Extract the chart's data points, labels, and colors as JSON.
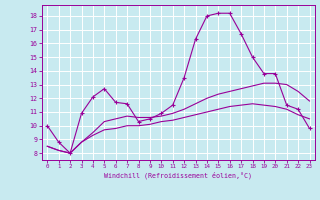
{
  "xlabel": "Windchill (Refroidissement éolien,°C)",
  "bg_color": "#c8eaf0",
  "line_color": "#990099",
  "grid_color": "#ffffff",
  "xlim": [
    -0.5,
    23.5
  ],
  "ylim": [
    7.5,
    18.8
  ],
  "xticks": [
    0,
    1,
    2,
    3,
    4,
    5,
    6,
    7,
    8,
    9,
    10,
    11,
    12,
    13,
    14,
    15,
    16,
    17,
    18,
    19,
    20,
    21,
    22,
    23
  ],
  "yticks": [
    8,
    9,
    10,
    11,
    12,
    13,
    14,
    15,
    16,
    17,
    18
  ],
  "series1_x": [
    0,
    1,
    2,
    3,
    4,
    5,
    6,
    7,
    8,
    9,
    10,
    11,
    12,
    13,
    14,
    15,
    16,
    17,
    18,
    19,
    20,
    21,
    22,
    23
  ],
  "series1_y": [
    10.0,
    8.8,
    8.0,
    10.9,
    12.1,
    12.7,
    11.7,
    11.6,
    10.3,
    10.5,
    10.9,
    11.5,
    13.5,
    16.3,
    18.0,
    18.2,
    18.2,
    16.7,
    15.0,
    13.8,
    13.8,
    11.5,
    11.2,
    9.8
  ],
  "series2_x": [
    0,
    1,
    2,
    3,
    4,
    5,
    6,
    7,
    8,
    9,
    10,
    11,
    12,
    13,
    14,
    15,
    16,
    17,
    18,
    19,
    20,
    21,
    22,
    23
  ],
  "series2_y": [
    8.5,
    8.2,
    8.0,
    8.8,
    9.3,
    9.7,
    9.8,
    10.0,
    10.0,
    10.1,
    10.3,
    10.4,
    10.6,
    10.8,
    11.0,
    11.2,
    11.4,
    11.5,
    11.6,
    11.5,
    11.4,
    11.2,
    10.8,
    10.5
  ],
  "series3_x": [
    0,
    1,
    2,
    3,
    4,
    5,
    6,
    7,
    8,
    9,
    10,
    11,
    12,
    13,
    14,
    15,
    16,
    17,
    18,
    19,
    20,
    21,
    22,
    23
  ],
  "series3_y": [
    8.5,
    8.2,
    8.0,
    8.8,
    9.5,
    10.3,
    10.5,
    10.7,
    10.6,
    10.6,
    10.7,
    10.9,
    11.2,
    11.6,
    12.0,
    12.3,
    12.5,
    12.7,
    12.9,
    13.1,
    13.1,
    13.0,
    12.5,
    11.8
  ]
}
